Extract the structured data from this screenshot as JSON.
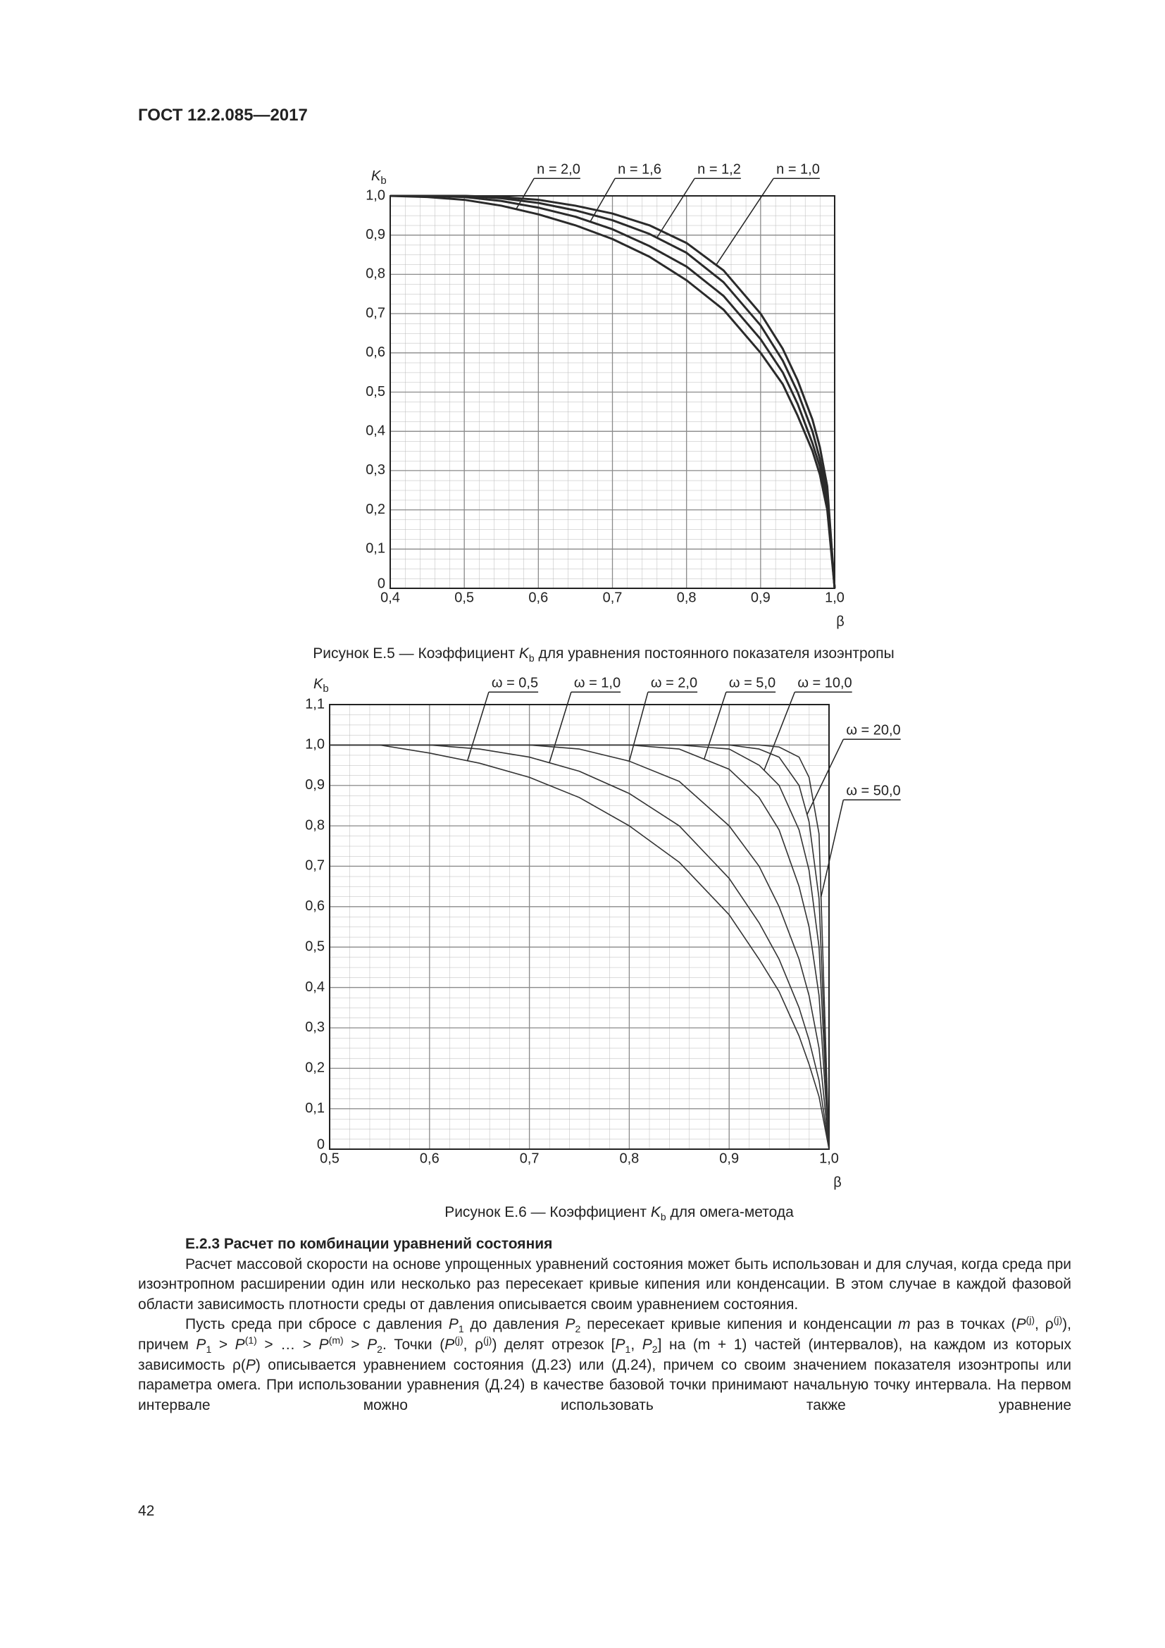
{
  "header": "ГОСТ 12.2.085—2017",
  "chart_data": [
    {
      "type": "line",
      "ylabel": {
        "i": "K",
        "sub": "b"
      },
      "xlabel": "β",
      "caption": [
        "Рисунок Е.5 — Коэффициент ",
        {
          "i": "K"
        },
        {
          "sub": "b"
        },
        " для уравнения постоянного показателя изоэнтропы"
      ],
      "x": [
        0.4,
        0.45,
        0.5,
        0.55,
        0.6,
        0.65,
        0.7,
        0.75,
        0.8,
        0.85,
        0.9,
        0.93,
        0.95,
        0.97,
        0.98,
        0.99,
        1.0
      ],
      "series": [
        {
          "name": "n = 2,0",
          "color": "#2a2a2a",
          "values": [
            1,
            0.997,
            0.99,
            0.975,
            0.953,
            0.925,
            0.89,
            0.845,
            0.785,
            0.71,
            0.6,
            0.52,
            0.44,
            0.35,
            0.29,
            0.2,
            0
          ]
        },
        {
          "name": "n = 1,6",
          "color": "#2a2a2a",
          "values": [
            1,
            1,
            0.997,
            0.987,
            0.97,
            0.947,
            0.915,
            0.872,
            0.82,
            0.745,
            0.635,
            0.55,
            0.47,
            0.37,
            0.31,
            0.22,
            0
          ]
        },
        {
          "name": "n = 1,2",
          "color": "#2a2a2a",
          "values": [
            1,
            1,
            1,
            0.994,
            0.982,
            0.963,
            0.938,
            0.903,
            0.855,
            0.78,
            0.67,
            0.58,
            0.5,
            0.4,
            0.33,
            0.24,
            0
          ]
        },
        {
          "name": "n = 1,0",
          "color": "#2a2a2a",
          "values": [
            1,
            1,
            1,
            0.997,
            0.99,
            0.975,
            0.955,
            0.925,
            0.88,
            0.81,
            0.7,
            0.61,
            0.53,
            0.43,
            0.36,
            0.26,
            0
          ]
        }
      ],
      "xlim": [
        0.4,
        1.0
      ],
      "ylim": [
        0,
        1.0
      ],
      "xticks": [
        {
          "value": 0.4,
          "label": "0,4"
        },
        {
          "value": 0.5,
          "label": "0,5"
        },
        {
          "value": 0.6,
          "label": "0,6"
        },
        {
          "value": 0.7,
          "label": "0,7"
        },
        {
          "value": 0.8,
          "label": "0,8"
        },
        {
          "value": 0.9,
          "label": "0,9"
        },
        {
          "value": 1.0,
          "label": "1,0"
        }
      ],
      "yticks": [
        0,
        {
          "value": 0.1,
          "label": "0,1"
        },
        {
          "value": 0.2,
          "label": "0,2"
        },
        {
          "value": 0.3,
          "label": "0,3"
        },
        {
          "value": 0.4,
          "label": "0,4"
        },
        {
          "value": 0.5,
          "label": "0,5"
        },
        {
          "value": 0.6,
          "label": "0,6"
        },
        {
          "value": 0.7,
          "label": "0,7"
        },
        {
          "value": 0.8,
          "label": "0,8"
        },
        {
          "value": 0.9,
          "label": "0,9"
        },
        {
          "value": 1.0,
          "label": "1,0"
        }
      ],
      "grid": true
    },
    {
      "type": "line",
      "ylabel": {
        "i": "K",
        "sub": "b"
      },
      "xlabel": "β",
      "caption": [
        "Рисунок Е.6 — Коэффициент ",
        {
          "i": "K"
        },
        {
          "sub": "b"
        },
        " для омега-метода"
      ],
      "x": [
        0.5,
        0.55,
        0.6,
        0.65,
        0.7,
        0.75,
        0.8,
        0.85,
        0.9,
        0.93,
        0.95,
        0.97,
        0.98,
        0.99,
        1.0
      ],
      "series": [
        {
          "name": "ω = 0,5",
          "color": "#333333",
          "values": [
            1,
            1,
            0.98,
            0.955,
            0.92,
            0.87,
            0.8,
            0.71,
            0.58,
            0.47,
            0.39,
            0.28,
            0.21,
            0.13,
            0
          ]
        },
        {
          "name": "ω = 1,0",
          "color": "#333333",
          "values": [
            1,
            1,
            1,
            0.99,
            0.97,
            0.935,
            0.88,
            0.8,
            0.67,
            0.56,
            0.47,
            0.35,
            0.27,
            0.17,
            0
          ]
        },
        {
          "name": "ω = 2,0",
          "color": "#333333",
          "values": [
            1,
            1,
            1,
            1,
            1,
            0.99,
            0.96,
            0.91,
            0.8,
            0.7,
            0.6,
            0.47,
            0.38,
            0.25,
            0
          ]
        },
        {
          "name": "ω = 5,0",
          "color": "#333333",
          "values": [
            1,
            1,
            1,
            1,
            1,
            1,
            1,
            0.99,
            0.94,
            0.87,
            0.79,
            0.65,
            0.55,
            0.38,
            0
          ]
        },
        {
          "name": "ω = 10,0",
          "color": "#333333",
          "values": [
            1,
            1,
            1,
            1,
            1,
            1,
            1,
            1,
            0.99,
            0.95,
            0.9,
            0.79,
            0.69,
            0.5,
            0
          ]
        },
        {
          "name": "ω = 20,0",
          "color": "#333333",
          "values": [
            1,
            1,
            1,
            1,
            1,
            1,
            1,
            1,
            1,
            0.99,
            0.97,
            0.9,
            0.81,
            0.62,
            0
          ]
        },
        {
          "name": "ω = 50,0",
          "color": "#333333",
          "values": [
            1,
            1,
            1,
            1,
            1,
            1,
            1,
            1,
            1,
            1,
            0.995,
            0.97,
            0.92,
            0.78,
            0
          ]
        }
      ],
      "xlim": [
        0.5,
        1.0
      ],
      "ylim": [
        0,
        1.1
      ],
      "xticks": [
        {
          "value": 0.5,
          "label": "0,5"
        },
        {
          "value": 0.6,
          "label": "0,6"
        },
        {
          "value": 0.7,
          "label": "0,7"
        },
        {
          "value": 0.8,
          "label": "0,8"
        },
        {
          "value": 0.9,
          "label": "0,9"
        },
        {
          "value": 1.0,
          "label": "1,0"
        }
      ],
      "yticks": [
        0,
        {
          "value": 0.1,
          "label": "0,1"
        },
        {
          "value": 0.2,
          "label": "0,2"
        },
        {
          "value": 0.3,
          "label": "0,3"
        },
        {
          "value": 0.4,
          "label": "0,4"
        },
        {
          "value": 0.5,
          "label": "0,5"
        },
        {
          "value": 0.6,
          "label": "0,6"
        },
        {
          "value": 0.7,
          "label": "0,7"
        },
        {
          "value": 0.8,
          "label": "0,8"
        },
        {
          "value": 0.9,
          "label": "0,9"
        },
        {
          "value": 1.0,
          "label": "1,0"
        },
        {
          "value": 1.1,
          "label": "1,1"
        }
      ],
      "grid": true
    }
  ],
  "section": {
    "heading": "Е.2.3 Расчет по комбинации уравнений состояния",
    "paragraphs": [
      [
        "Расчет массовой скорости на основе упрощенных уравнений состояния может быть использован и для случая, когда среда при изоэнтропном расширении один или несколько раз пересекает кривые кипения или конденсации. В этом случае в каждой фазовой области зависимость плотности среды от давления описывается своим уравнением состояния."
      ],
      [
        "Пусть среда при сбросе с давления ",
        {
          "i": "P"
        },
        {
          "sub": "1"
        },
        " до давления ",
        {
          "i": "P"
        },
        {
          "sub": "2"
        },
        " пересекает кривые кипения и конденсации ",
        {
          "i": "m"
        },
        " раз в точках (",
        {
          "i": "P"
        },
        {
          "sup": "(j)"
        },
        ", ρ",
        {
          "sup": "(j)"
        },
        "), причем ",
        {
          "i": "P"
        },
        {
          "sub": "1"
        },
        " > ",
        {
          "i": "P"
        },
        {
          "sup": "(1)"
        },
        " > … > ",
        {
          "i": "P"
        },
        {
          "sup": "(m)"
        },
        " > ",
        {
          "i": "P"
        },
        {
          "sub": "2"
        },
        ". Точки (",
        {
          "i": "P"
        },
        {
          "sup": "(j)"
        },
        ", ρ",
        {
          "sup": "(j)"
        },
        ") делят отрезок [",
        {
          "i": "P"
        },
        {
          "sub": "1"
        },
        ", ",
        {
          "i": "P"
        },
        {
          "sub": "2"
        },
        "] на (m + 1) частей (интервалов), на каждом из которых зависимость ρ(",
        {
          "i": "P"
        },
        ") описывается уравнением состояния (Д.23) или (Д.24), причем со своим значением показателя изоэнтропы или параметра омега. При использовании уравнения (Д.24) в качестве базовой точки принимают начальную точку интервала. На первом интервале можно использовать также уравнение"
      ]
    ]
  },
  "page_number": "42"
}
